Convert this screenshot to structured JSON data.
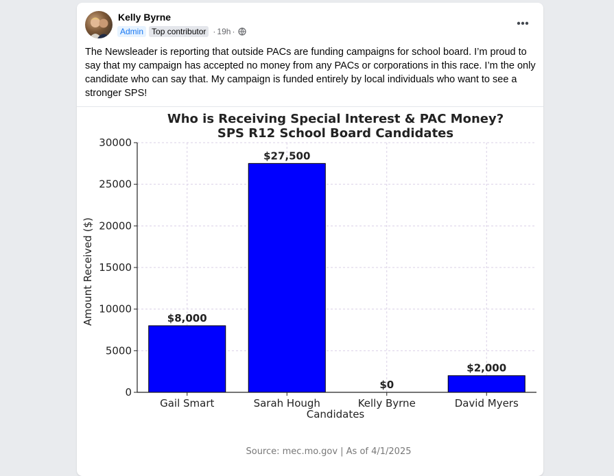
{
  "post": {
    "author": "Kelly Byrne",
    "badge_role": "Admin",
    "badge_contributor": "Top contributor",
    "time": "19h",
    "audience_icon": "globe-icon",
    "more_icon": "more-horizontal-icon",
    "text": "The Newsleader is reporting that outside PACs are funding campaigns for school board. I’m proud to say that my campaign has accepted no money from any PACs or corporations in this race. I’m the only candidate who can say that. My campaign is funded entirely by local individuals who want to see a stronger SPS!"
  },
  "chart_data": {
    "type": "bar",
    "title_line1": "Who is Receiving Special Interest & PAC Money?",
    "title_line2": "SPS R12 School Board Candidates",
    "xlabel": "Candidates",
    "ylabel": "Amount Received ($)",
    "categories": [
      "Gail Smart",
      "Sarah Hough",
      "Kelly Byrne",
      "David Myers"
    ],
    "values": [
      8000,
      27500,
      0,
      2000
    ],
    "data_labels": [
      "$8,000",
      "$27,500",
      "$0",
      "$2,000"
    ],
    "yticks": [
      "0",
      "5000",
      "10000",
      "15000",
      "20000",
      "25000",
      "30000"
    ],
    "ylim": [
      0,
      30000
    ],
    "grid": true,
    "bar_color": "#0000ff",
    "source": "Source: mec.mo.gov | As of 4/1/2025"
  }
}
